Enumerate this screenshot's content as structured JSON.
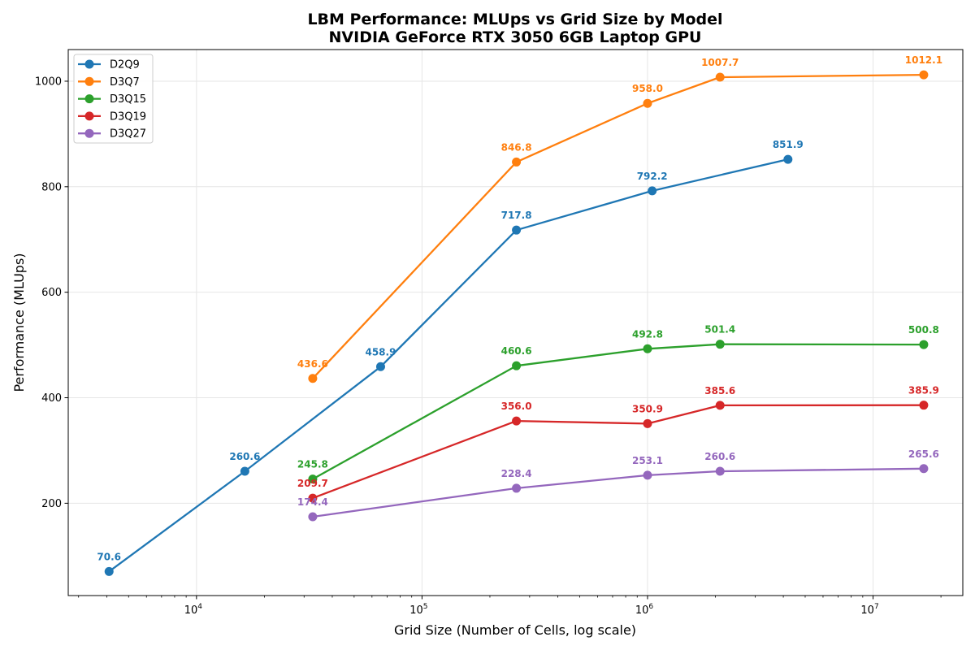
{
  "chart_data": {
    "type": "line",
    "title": "LBM Performance: MLUps vs Grid Size by Model",
    "subtitle": "NVIDIA GeForce RTX 3050 6GB Laptop GPU",
    "xlabel": "Grid Size (Number of Cells, log scale)",
    "ylabel": "Performance (MLUps)",
    "xscale": "log",
    "xlim": [
      2700,
      25000000
    ],
    "ylim": [
      25,
      1060
    ],
    "xticks": [
      10000,
      100000,
      1000000,
      10000000
    ],
    "xtick_labels": [
      {
        "base": "10",
        "exp": "4"
      },
      {
        "base": "10",
        "exp": "5"
      },
      {
        "base": "10",
        "exp": "6"
      },
      {
        "base": "10",
        "exp": "7"
      }
    ],
    "yticks": [
      200,
      400,
      600,
      800,
      1000
    ],
    "ytick_labels": [
      "200",
      "400",
      "600",
      "800",
      "1000"
    ],
    "grid": true,
    "legend_position": "top-left",
    "series": [
      {
        "name": "D2Q9",
        "color": "#1f77b4",
        "x": [
          4096,
          16384,
          65536,
          262144,
          1048576,
          4194304
        ],
        "values": [
          70.6,
          260.6,
          458.9,
          717.8,
          792.2,
          851.9
        ],
        "labels": [
          "70.6",
          "260.6",
          "458.9",
          "717.8",
          "792.2",
          "851.9"
        ]
      },
      {
        "name": "D3Q7",
        "color": "#ff7f0e",
        "x": [
          32768,
          262144,
          1000000,
          2097152,
          16777216
        ],
        "values": [
          436.6,
          846.8,
          958.0,
          1007.7,
          1012.1
        ],
        "labels": [
          "436.6",
          "846.8",
          "958.0",
          "1007.7",
          "1012.1"
        ]
      },
      {
        "name": "D3Q15",
        "color": "#2ca02c",
        "x": [
          32768,
          262144,
          1000000,
          2097152,
          16777216
        ],
        "values": [
          245.8,
          460.6,
          492.8,
          501.4,
          500.8
        ],
        "labels": [
          "245.8",
          "460.6",
          "492.8",
          "501.4",
          "500.8"
        ]
      },
      {
        "name": "D3Q19",
        "color": "#d62728",
        "x": [
          32768,
          262144,
          1000000,
          2097152,
          16777216
        ],
        "values": [
          209.7,
          356.0,
          350.9,
          385.6,
          385.9
        ],
        "labels": [
          "209.7",
          "356.0",
          "350.9",
          "385.6",
          "385.9"
        ]
      },
      {
        "name": "D3Q27",
        "color": "#9467bd",
        "x": [
          32768,
          262144,
          1000000,
          2097152,
          16777216
        ],
        "values": [
          174.4,
          228.4,
          253.1,
          260.6,
          265.6
        ],
        "labels": [
          "174.4",
          "228.4",
          "253.1",
          "260.6",
          "265.6"
        ]
      }
    ]
  }
}
